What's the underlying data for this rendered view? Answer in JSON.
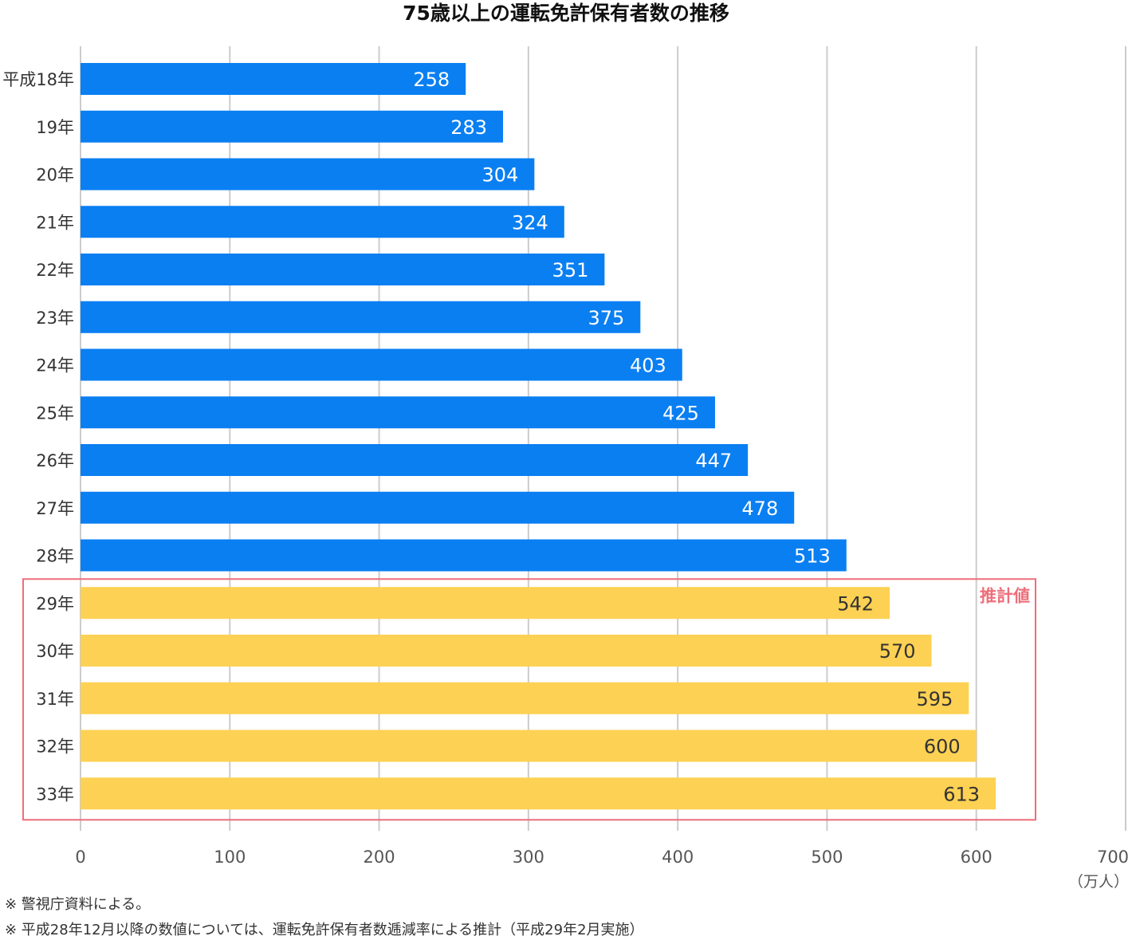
{
  "chart_data": {
    "type": "bar",
    "orientation": "horizontal",
    "title": "75歳以上の運転免許保有者数の推移",
    "categories": [
      "平成18年",
      "19年",
      "20年",
      "21年",
      "22年",
      "23年",
      "24年",
      "25年",
      "26年",
      "27年",
      "28年",
      "29年",
      "30年",
      "31年",
      "32年",
      "33年"
    ],
    "values": [
      258,
      283,
      304,
      324,
      351,
      375,
      403,
      425,
      447,
      478,
      513,
      542,
      570,
      595,
      600,
      613
    ],
    "value_labels": [
      "258",
      "283",
      "304",
      "324",
      "351",
      "375",
      "403",
      "425",
      "447",
      "478",
      "513",
      "542",
      "570",
      "595",
      "600",
      "613"
    ],
    "estimated_from_index": 11,
    "estimate_label": "推計値",
    "xlim": [
      0,
      700
    ],
    "xticks": [
      "0",
      "100",
      "200",
      "300",
      "400",
      "500",
      "600",
      "700"
    ],
    "unit_label": "（万人）",
    "grid": true,
    "colors": {
      "actual": "#0a7ff2",
      "estimate": "#fdd153",
      "estimate_box": "#ee6e7a",
      "grid": "#cccccc"
    }
  },
  "notes": [
    "※ 警視庁資料による。",
    "※ 平成28年12月以降の数値については、運転免許保有者数逓減率による推計（平成29年2月実施）"
  ]
}
